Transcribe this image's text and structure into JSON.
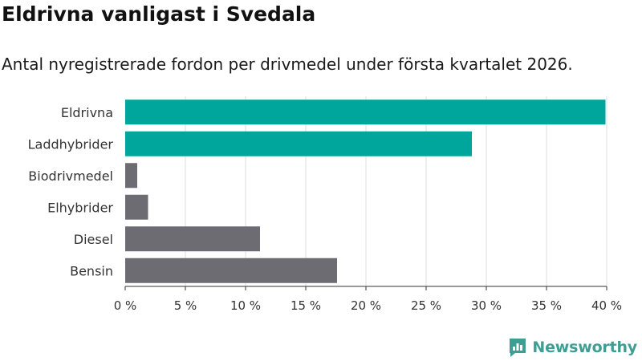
{
  "title": "Eldrivna vanligast i Svedala",
  "subtitle": "Antal nyregistrerade fordon per drivmedel under första kvartalet 2026.",
  "brand": {
    "name": "Newsworthy",
    "color": "#3f9e94",
    "icon": "newsworthy-logo-icon"
  },
  "chart_data": {
    "type": "bar",
    "orientation": "horizontal",
    "categories": [
      "Eldrivna",
      "Laddhybrider",
      "Biodrivmedel",
      "Elhybrider",
      "Diesel",
      "Bensin"
    ],
    "values": [
      39.9,
      28.8,
      1.0,
      1.9,
      11.2,
      17.6
    ],
    "colors": [
      "#00a59b",
      "#00a59b",
      "#6e6c73",
      "#6e6c73",
      "#6e6c73",
      "#6e6c73"
    ],
    "xlim": [
      0,
      40
    ],
    "ticks": [
      0,
      5,
      10,
      15,
      20,
      25,
      30,
      35,
      40
    ],
    "tick_labels": [
      "0 %",
      "5 %",
      "10 %",
      "15 %",
      "20 %",
      "25 %",
      "30 %",
      "35 %",
      "40 %"
    ],
    "xlabel": "",
    "ylabel": "",
    "grid": true,
    "legend": "none"
  }
}
